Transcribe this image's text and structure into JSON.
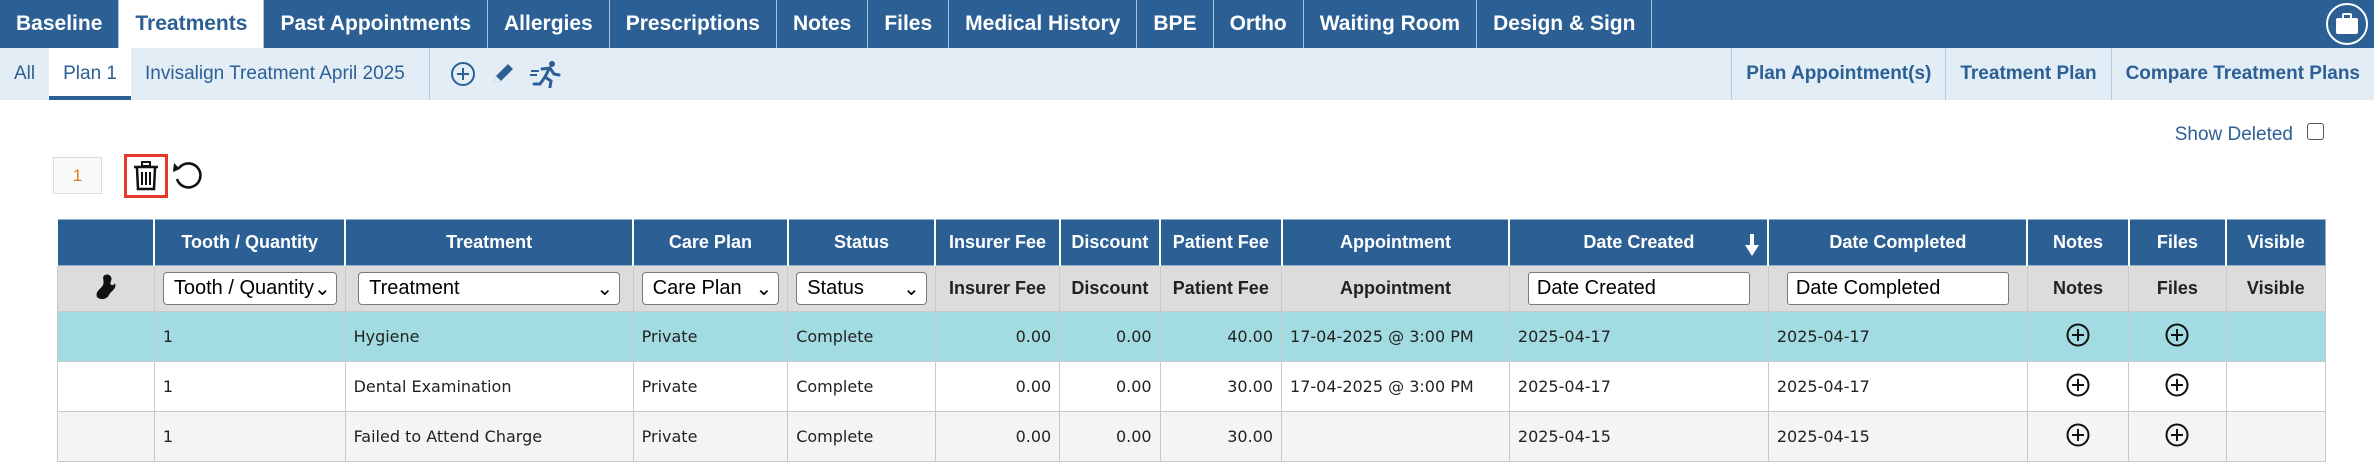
{
  "top_tabs": [
    "Baseline",
    "Treatments",
    "Past Appointments",
    "Allergies",
    "Prescriptions",
    "Notes",
    "Files",
    "Medical History",
    "BPE",
    "Ortho",
    "Waiting Room",
    "Design & Sign"
  ],
  "sub_tabs": {
    "all": "All",
    "plan": "Plan 1",
    "plan_name": "Invisalign Treatment April 2025"
  },
  "right_links": [
    "Plan Appointment(s)",
    "Treatment Plan",
    "Compare Treatment Plans"
  ],
  "show_deleted_label": "Show Deleted",
  "page_number": "1",
  "table": {
    "headers": [
      "Tooth / Quantity",
      "Treatment",
      "Care Plan",
      "Status",
      "Insurer Fee",
      "Discount",
      "Patient Fee",
      "Appointment",
      "Date Created",
      "Date Completed",
      "Notes",
      "Files",
      "Visible"
    ],
    "filters": {
      "tooth": "Tooth / Quantity",
      "treatment": "Treatment",
      "care_plan": "Care Plan",
      "status": "Status",
      "insurer_fee": "Insurer Fee",
      "discount": "Discount",
      "patient_fee": "Patient Fee",
      "appointment": "Appointment",
      "date_created": "Date Created",
      "date_completed": "Date Completed",
      "notes": "Notes",
      "files": "Files",
      "visible": "Visible"
    },
    "rows": [
      {
        "tooth": "1",
        "treatment": "Hygiene",
        "care_plan": "Private",
        "status": "Complete",
        "insurer_fee": "0.00",
        "discount": "0.00",
        "patient_fee": "40.00",
        "appointment": "17-04-2025 @ 3:00 PM",
        "date_created": "2025-04-17",
        "date_completed": "2025-04-17"
      },
      {
        "tooth": "1",
        "treatment": "Dental Examination",
        "care_plan": "Private",
        "status": "Complete",
        "insurer_fee": "0.00",
        "discount": "0.00",
        "patient_fee": "30.00",
        "appointment": "17-04-2025 @ 3:00 PM",
        "date_created": "2025-04-17",
        "date_completed": "2025-04-17"
      },
      {
        "tooth": "1",
        "treatment": "Failed to Attend Charge",
        "care_plan": "Private",
        "status": "Complete",
        "insurer_fee": "0.00",
        "discount": "0.00",
        "patient_fee": "30.00",
        "appointment": "",
        "date_created": "2025-04-15",
        "date_completed": "2025-04-15"
      }
    ]
  },
  "colors": {
    "primary": "#2c6094",
    "subbar": "#e3edf6",
    "highlight_row": "#a2dbe1",
    "delete_outline": "#e23b2e",
    "page_number": "#e07a20"
  },
  "icons": [
    "briefcase-icon",
    "add-circle-icon",
    "pencil-icon",
    "running-person-icon",
    "trash-icon",
    "undo-icon",
    "tooth-icon",
    "sort-down-icon",
    "add-note-icon",
    "add-file-icon"
  ]
}
